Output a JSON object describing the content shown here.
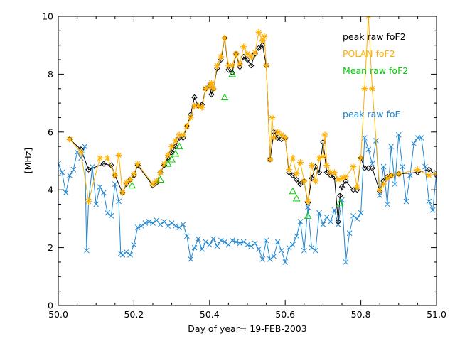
{
  "chart_data": {
    "type": "line",
    "title": "",
    "xlabel": "Day of year= 19-FEB-2003",
    "ylabel": "[MHz]",
    "xlim": [
      50.0,
      51.0
    ],
    "ylim": [
      0,
      10
    ],
    "grid": false,
    "legend_position": "top-right",
    "x_ticks": [
      "50.0",
      "50.2",
      "50.4",
      "50.6",
      "50.8",
      "51.0"
    ],
    "y_ticks": [
      "0",
      "2",
      "4",
      "6",
      "8",
      "10"
    ],
    "series": [
      {
        "name": "peak raw foF2",
        "color": "#000000",
        "marker": "diamond",
        "x": [
          50.03,
          50.06,
          50.08,
          50.12,
          50.14,
          50.15,
          50.17,
          50.18,
          50.19,
          50.2,
          50.21,
          50.25,
          50.26,
          50.27,
          50.28,
          50.29,
          50.3,
          50.31,
          50.32,
          50.33,
          50.34,
          50.35,
          50.36,
          50.37,
          50.38,
          50.39,
          50.4,
          50.405,
          50.41,
          50.42,
          50.43,
          50.44,
          50.45,
          50.46,
          50.47,
          50.48,
          50.49,
          50.5,
          50.51,
          50.52,
          50.53,
          50.54,
          50.55,
          50.56,
          50.57,
          50.58,
          50.59,
          50.6,
          50.61,
          50.62,
          50.63,
          50.64,
          50.65,
          50.66,
          50.67,
          50.68,
          50.69,
          50.7,
          50.71,
          50.72,
          50.73,
          50.74,
          50.745,
          50.75,
          50.76,
          50.78,
          50.79,
          50.8,
          50.81,
          50.82,
          50.83,
          50.85,
          50.86,
          50.87,
          50.88,
          50.9,
          50.95,
          50.98,
          51.0
        ],
        "values": [
          5.75,
          5.4,
          4.7,
          4.9,
          4.85,
          4.5,
          3.9,
          4.2,
          4.35,
          4.5,
          4.85,
          4.15,
          4.25,
          4.6,
          4.85,
          5.1,
          5.3,
          5.5,
          5.8,
          5.8,
          6.2,
          6.6,
          7.2,
          6.9,
          6.95,
          7.5,
          7.6,
          7.3,
          7.5,
          8.2,
          8.5,
          9.25,
          8.15,
          8.05,
          8.7,
          8.25,
          8.6,
          8.5,
          8.3,
          8.7,
          8.9,
          9.0,
          8.3,
          5.05,
          6.0,
          5.8,
          5.75,
          5.8,
          4.6,
          4.5,
          4.35,
          4.2,
          4.3,
          3.55,
          4.4,
          4.8,
          4.6,
          5.65,
          4.6,
          4.5,
          4.45,
          2.9,
          3.8,
          4.1,
          4.3,
          4.0,
          4.0,
          5.1,
          4.75,
          4.75,
          4.75,
          3.95,
          4.3,
          4.45,
          4.5,
          4.55,
          4.6,
          4.7,
          4.5
        ]
      },
      {
        "name": "POLAN foF2",
        "color": "#ffb000",
        "marker": "star",
        "x": [
          50.03,
          50.06,
          50.08,
          50.11,
          50.13,
          50.15,
          50.16,
          50.17,
          50.18,
          50.19,
          50.2,
          50.21,
          50.25,
          50.26,
          50.27,
          50.28,
          50.29,
          50.3,
          50.31,
          50.32,
          50.33,
          50.34,
          50.35,
          50.36,
          50.37,
          50.38,
          50.39,
          50.4,
          50.405,
          50.41,
          50.42,
          50.43,
          50.44,
          50.45,
          50.46,
          50.47,
          50.48,
          50.49,
          50.5,
          50.51,
          50.52,
          50.53,
          50.54,
          50.545,
          50.55,
          50.56,
          50.565,
          50.57,
          50.58,
          50.59,
          50.6,
          50.61,
          50.62,
          50.63,
          50.64,
          50.65,
          50.66,
          50.67,
          50.68,
          50.69,
          50.7,
          50.705,
          50.71,
          50.72,
          50.73,
          50.74,
          50.75,
          50.76,
          50.78,
          50.79,
          50.8,
          50.81,
          50.82,
          50.83,
          50.85,
          50.86,
          50.87,
          50.88,
          50.9,
          50.95,
          50.98,
          51.0
        ],
        "values": [
          5.75,
          5.3,
          3.6,
          5.1,
          5.1,
          4.5,
          5.2,
          3.9,
          4.25,
          4.35,
          4.55,
          4.9,
          4.2,
          4.3,
          4.6,
          4.9,
          5.2,
          5.5,
          5.7,
          5.9,
          5.9,
          6.2,
          6.5,
          6.9,
          6.9,
          6.85,
          7.5,
          7.6,
          7.7,
          7.5,
          8.3,
          8.6,
          9.25,
          8.3,
          8.3,
          8.7,
          8.35,
          8.95,
          8.7,
          8.6,
          8.75,
          9.45,
          9.15,
          9.3,
          8.3,
          5.05,
          6.5,
          5.8,
          6.0,
          5.9,
          5.8,
          4.7,
          5.1,
          4.55,
          4.95,
          4.3,
          3.6,
          4.85,
          4.3,
          5.1,
          5.15,
          5.9,
          4.85,
          4.6,
          4.6,
          4.35,
          4.4,
          4.45,
          4.8,
          4.1,
          5.1,
          7.5,
          10.0,
          7.5,
          4.0,
          4.2,
          4.4,
          4.5,
          4.55,
          4.7,
          4.5,
          4.55
        ]
      },
      {
        "name": "Mean raw foF2",
        "color": "#00cc00",
        "marker": "triangle",
        "x": [
          50.195,
          50.27,
          50.29,
          50.3,
          50.31,
          50.32,
          50.44,
          50.46,
          50.62,
          50.63,
          50.66,
          50.745
        ],
        "values": [
          4.15,
          4.35,
          4.9,
          5.05,
          5.25,
          5.5,
          7.2,
          8.0,
          3.95,
          3.7,
          3.1,
          3.55
        ]
      },
      {
        "name": "peak raw foE",
        "color": "#1f86d2",
        "marker": "x",
        "x": [
          50.0,
          50.01,
          50.02,
          50.03,
          50.04,
          50.05,
          50.06,
          50.07,
          50.075,
          50.08,
          50.09,
          50.1,
          50.11,
          50.12,
          50.13,
          50.14,
          50.15,
          50.16,
          50.165,
          50.17,
          50.18,
          50.19,
          50.2,
          50.21,
          50.22,
          50.23,
          50.24,
          50.25,
          50.26,
          50.27,
          50.28,
          50.29,
          50.3,
          50.31,
          50.32,
          50.33,
          50.34,
          50.35,
          50.36,
          50.37,
          50.38,
          50.39,
          50.4,
          50.41,
          50.42,
          50.43,
          50.44,
          50.45,
          50.46,
          50.47,
          50.48,
          50.49,
          50.5,
          50.51,
          50.52,
          50.53,
          50.54,
          50.55,
          50.56,
          50.57,
          50.58,
          50.59,
          50.6,
          50.61,
          50.62,
          50.63,
          50.64,
          50.65,
          50.66,
          50.67,
          50.68,
          50.69,
          50.7,
          50.71,
          50.72,
          50.73,
          50.74,
          50.75,
          50.76,
          50.77,
          50.78,
          50.79,
          50.8,
          50.81,
          50.82,
          50.83,
          50.84,
          50.85,
          50.86,
          50.87,
          50.88,
          50.89,
          50.9,
          50.91,
          50.92,
          50.93,
          50.94,
          50.95,
          50.96,
          50.97,
          50.98,
          50.99,
          51.0
        ],
        "values": [
          4.9,
          4.6,
          3.9,
          4.5,
          4.7,
          5.3,
          5.1,
          5.5,
          1.9,
          3.6,
          4.8,
          3.5,
          4.1,
          3.9,
          3.2,
          3.1,
          4.2,
          3.6,
          1.8,
          1.75,
          1.85,
          1.75,
          2.1,
          2.7,
          2.75,
          2.85,
          2.9,
          2.85,
          2.95,
          2.8,
          2.9,
          2.75,
          2.85,
          2.75,
          2.7,
          2.8,
          2.4,
          1.6,
          2.0,
          2.3,
          1.95,
          2.2,
          2.1,
          2.3,
          2.05,
          2.25,
          2.2,
          2.1,
          2.25,
          2.2,
          2.15,
          2.2,
          2.1,
          2.05,
          2.15,
          1.95,
          1.6,
          2.25,
          1.6,
          1.7,
          2.2,
          1.9,
          1.5,
          2.0,
          2.1,
          2.4,
          2.9,
          1.9,
          3.4,
          2.0,
          1.9,
          3.2,
          2.8,
          3.05,
          2.9,
          3.3,
          2.8,
          3.65,
          1.5,
          2.5,
          3.1,
          3.0,
          3.2,
          5.8,
          5.4,
          4.9,
          5.7,
          3.8,
          4.8,
          3.5,
          5.5,
          4.2,
          5.9,
          4.8,
          3.6,
          4.5,
          5.6,
          5.8,
          5.8,
          4.8,
          3.6,
          3.3,
          4.6
        ]
      }
    ]
  }
}
